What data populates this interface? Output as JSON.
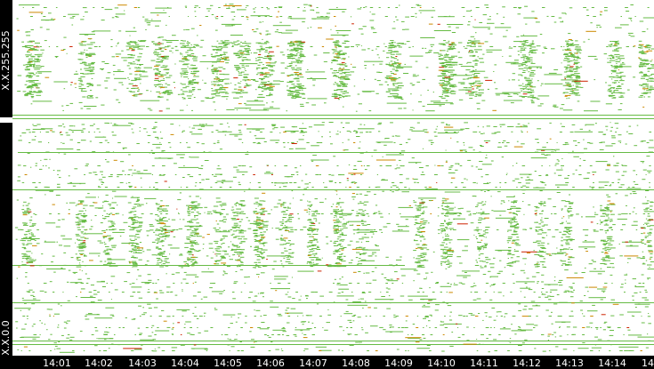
{
  "chart_data": {
    "type": "scatter",
    "title": "",
    "xlabel": "",
    "ylabel": "",
    "x_ticks": [
      "14:01",
      "14:02",
      "14:03",
      "14:04",
      "14:05",
      "14:06",
      "14:07",
      "14:08",
      "14:09",
      "14:10",
      "14:11",
      "14:12",
      "14:13",
      "14:14",
      "14"
    ],
    "y_labels": {
      "top": "X.X.255.255",
      "bottom": "X.X.0.0"
    },
    "series": [
      {
        "color": "#66bb44"
      },
      {
        "color": "#cc8800"
      },
      {
        "color": "#cc2200"
      }
    ],
    "grid": false,
    "legend": "none",
    "background": "#ffffff",
    "axis_color": "#000000"
  }
}
